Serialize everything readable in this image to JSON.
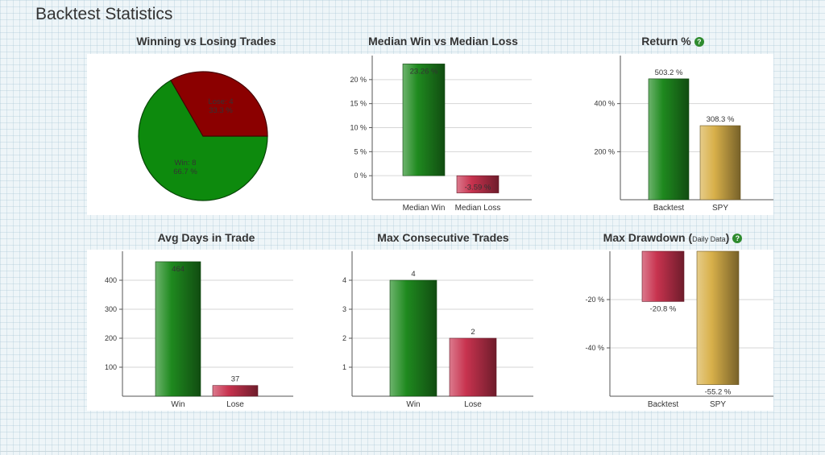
{
  "page": {
    "title": "Backtest Statistics"
  },
  "colors": {
    "green": "#1f8a1f",
    "red": "#c8334f",
    "gold": "#d8b04a",
    "pie_green": "#0d8a0d",
    "pie_red": "#8b0000"
  },
  "chart_data": [
    {
      "id": "win-lose",
      "type": "pie",
      "title": "Winning vs Losing Trades",
      "slices": [
        {
          "name": "Win",
          "value": 8,
          "percent": "66.7 %",
          "label1": "Win: 8",
          "label2": "66.7 %"
        },
        {
          "name": "Lose",
          "value": 4,
          "percent": "33.3 %",
          "label1": "Lose: 4",
          "label2": "33.3 %"
        }
      ]
    },
    {
      "id": "median",
      "type": "bar",
      "title": "Median Win vs Median Loss",
      "categories": [
        "Median Win",
        "Median Loss"
      ],
      "values": [
        23.26,
        -3.59
      ],
      "value_labels": [
        "23.26 %",
        "-3.59 %"
      ],
      "colors": [
        "green",
        "red"
      ],
      "ylim": [
        -5,
        25
      ],
      "yticks": [
        0,
        5,
        10,
        15,
        20
      ],
      "ytick_labels": [
        "0 %",
        "5 %",
        "10 %",
        "15 %",
        "20 %"
      ]
    },
    {
      "id": "return",
      "type": "bar",
      "title": "Return %",
      "help": "?",
      "categories": [
        "Backtest",
        "SPY"
      ],
      "values": [
        503.2,
        308.3
      ],
      "value_labels": [
        "503.2 %",
        "308.3 %"
      ],
      "colors": [
        "green",
        "gold"
      ],
      "ylim": [
        0,
        600
      ],
      "yticks": [
        200,
        400
      ],
      "ytick_labels": [
        "200 %",
        "400 %"
      ]
    },
    {
      "id": "days",
      "type": "bar",
      "title": "Avg Days in Trade",
      "categories": [
        "Win",
        "Lose"
      ],
      "values": [
        464,
        37
      ],
      "value_labels": [
        "464",
        "37"
      ],
      "colors": [
        "green",
        "red"
      ],
      "ylim": [
        0,
        500
      ],
      "yticks": [
        100,
        200,
        300,
        400
      ],
      "ytick_labels": [
        "100",
        "200",
        "300",
        "400"
      ]
    },
    {
      "id": "consecutive",
      "type": "bar",
      "title": "Max Consecutive Trades",
      "categories": [
        "Win",
        "Lose"
      ],
      "values": [
        4,
        2
      ],
      "value_labels": [
        "4",
        "2"
      ],
      "colors": [
        "green",
        "red"
      ],
      "ylim": [
        0,
        5
      ],
      "yticks": [
        1,
        2,
        3,
        4
      ],
      "ytick_labels": [
        "1",
        "2",
        "3",
        "4"
      ]
    },
    {
      "id": "drawdown",
      "type": "bar",
      "title": "Max Drawdown (",
      "title_small": "Daily Data",
      "title_end": ")",
      "help": "?",
      "categories": [
        "Backtest",
        "SPY"
      ],
      "values": [
        -20.8,
        -55.2
      ],
      "value_labels": [
        "-20.8 %",
        "-55.2 %"
      ],
      "colors": [
        "red",
        "gold"
      ],
      "ylim": [
        -60,
        0
      ],
      "yticks": [
        -20,
        -40
      ],
      "ytick_labels": [
        "-20 %",
        "-40 %"
      ]
    }
  ]
}
